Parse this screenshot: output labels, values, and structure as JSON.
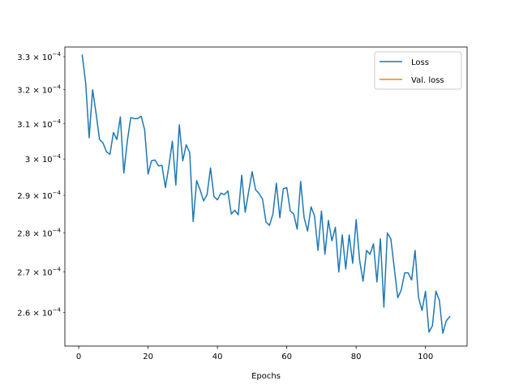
{
  "chart_data": {
    "type": "line",
    "xlabel": "Epochs",
    "ylabel": "",
    "title": "",
    "xlim": [
      -4,
      112
    ],
    "ylim": [
      0.000252,
      0.000333
    ],
    "y_scale": "log",
    "grid": false,
    "legend_position": "top-right",
    "x_ticks": [
      {
        "value": 0,
        "label": "0"
      },
      {
        "value": 20,
        "label": "20"
      },
      {
        "value": 40,
        "label": "40"
      },
      {
        "value": 60,
        "label": "60"
      },
      {
        "value": 80,
        "label": "80"
      },
      {
        "value": 100,
        "label": "100"
      }
    ],
    "y_ticks": [
      {
        "value": 0.00026,
        "mantissa": "2.6 × 10",
        "exponent": "−4"
      },
      {
        "value": 0.00027,
        "mantissa": "2.7 × 10",
        "exponent": "−4"
      },
      {
        "value": 0.00028,
        "mantissa": "2.8 × 10",
        "exponent": "−4"
      },
      {
        "value": 0.00029,
        "mantissa": "2.9 × 10",
        "exponent": "−4"
      },
      {
        "value": 0.0003,
        "mantissa": "3 × 10",
        "exponent": "−4"
      },
      {
        "value": 0.00031,
        "mantissa": "3.1 × 10",
        "exponent": "−4"
      },
      {
        "value": 0.00032,
        "mantissa": "3.2 × 10",
        "exponent": "−4"
      },
      {
        "value": 0.00033,
        "mantissa": "3.3 × 10",
        "exponent": "−4"
      }
    ],
    "series": [
      {
        "name": "Loss",
        "color": "#1f77b4",
        "x": [
          1,
          2,
          3,
          4,
          5,
          6,
          7,
          8,
          9,
          10,
          11,
          12,
          13,
          14,
          15,
          16,
          17,
          18,
          19,
          20,
          21,
          22,
          23,
          24,
          25,
          26,
          27,
          28,
          29,
          30,
          31,
          32,
          33,
          34,
          35,
          36,
          37,
          38,
          39,
          40,
          41,
          42,
          43,
          44,
          45,
          46,
          47,
          48,
          49,
          50,
          51,
          52,
          53,
          54,
          55,
          56,
          57,
          58,
          59,
          60,
          61,
          62,
          63,
          64,
          65,
          66,
          67,
          68,
          69,
          70,
          71,
          72,
          73,
          74,
          75,
          76,
          77,
          78,
          79,
          80,
          81,
          82,
          83,
          84,
          85,
          86,
          87,
          88,
          89,
          90,
          91,
          92,
          93,
          94,
          95,
          96,
          97,
          98,
          99,
          100,
          101,
          102,
          103,
          104,
          105,
          106,
          107
        ],
        "y": [
          0.0003305,
          0.000322,
          0.000306,
          0.00032,
          0.000313,
          0.0003055,
          0.0003045,
          0.000302,
          0.0003013,
          0.0003075,
          0.0003055,
          0.000312,
          0.0002961,
          0.000305,
          0.0003118,
          0.0003115,
          0.0003115,
          0.0003122,
          0.0003083,
          0.0002958,
          0.0002995,
          0.0002997,
          0.0002981,
          0.0002982,
          0.0002921,
          0.0002981,
          0.000305,
          0.0002928,
          0.0003097,
          0.0002995,
          0.000304,
          0.0003018,
          0.000283,
          0.000294,
          0.0002915,
          0.0002885,
          0.0002902,
          0.0002975,
          0.0002897,
          0.0002888,
          0.0002906,
          0.0002902,
          0.0002912,
          0.000285,
          0.000286,
          0.0002848,
          0.0002955,
          0.0002855,
          0.000291,
          0.0002965,
          0.0002915,
          0.0002905,
          0.000289,
          0.0002829,
          0.000282,
          0.000285,
          0.0002933,
          0.000284,
          0.0002918,
          0.0002921,
          0.0002858,
          0.000285,
          0.000281,
          0.0002938,
          0.000284,
          0.0002805,
          0.0002869,
          0.0002845,
          0.0002755,
          0.0002858,
          0.0002745,
          0.0002833,
          0.000278,
          0.0002815,
          0.00027,
          0.0002795,
          0.0002708,
          0.0002795,
          0.0002722,
          0.0002835,
          0.000273,
          0.0002677,
          0.0002755,
          0.0002745,
          0.0002772,
          0.0002675,
          0.0002785,
          0.0002613,
          0.00028,
          0.0002785,
          0.000271,
          0.0002636,
          0.0002655,
          0.0002698,
          0.0002698,
          0.000268,
          0.0002755,
          0.0002636,
          0.0002605,
          0.0002652,
          0.0002553,
          0.0002568,
          0.0002652,
          0.000263,
          0.000255,
          0.000258,
          0.000259
        ]
      },
      {
        "name": "Val. loss",
        "color": "#ff7f0e",
        "x": [],
        "y": []
      }
    ]
  }
}
